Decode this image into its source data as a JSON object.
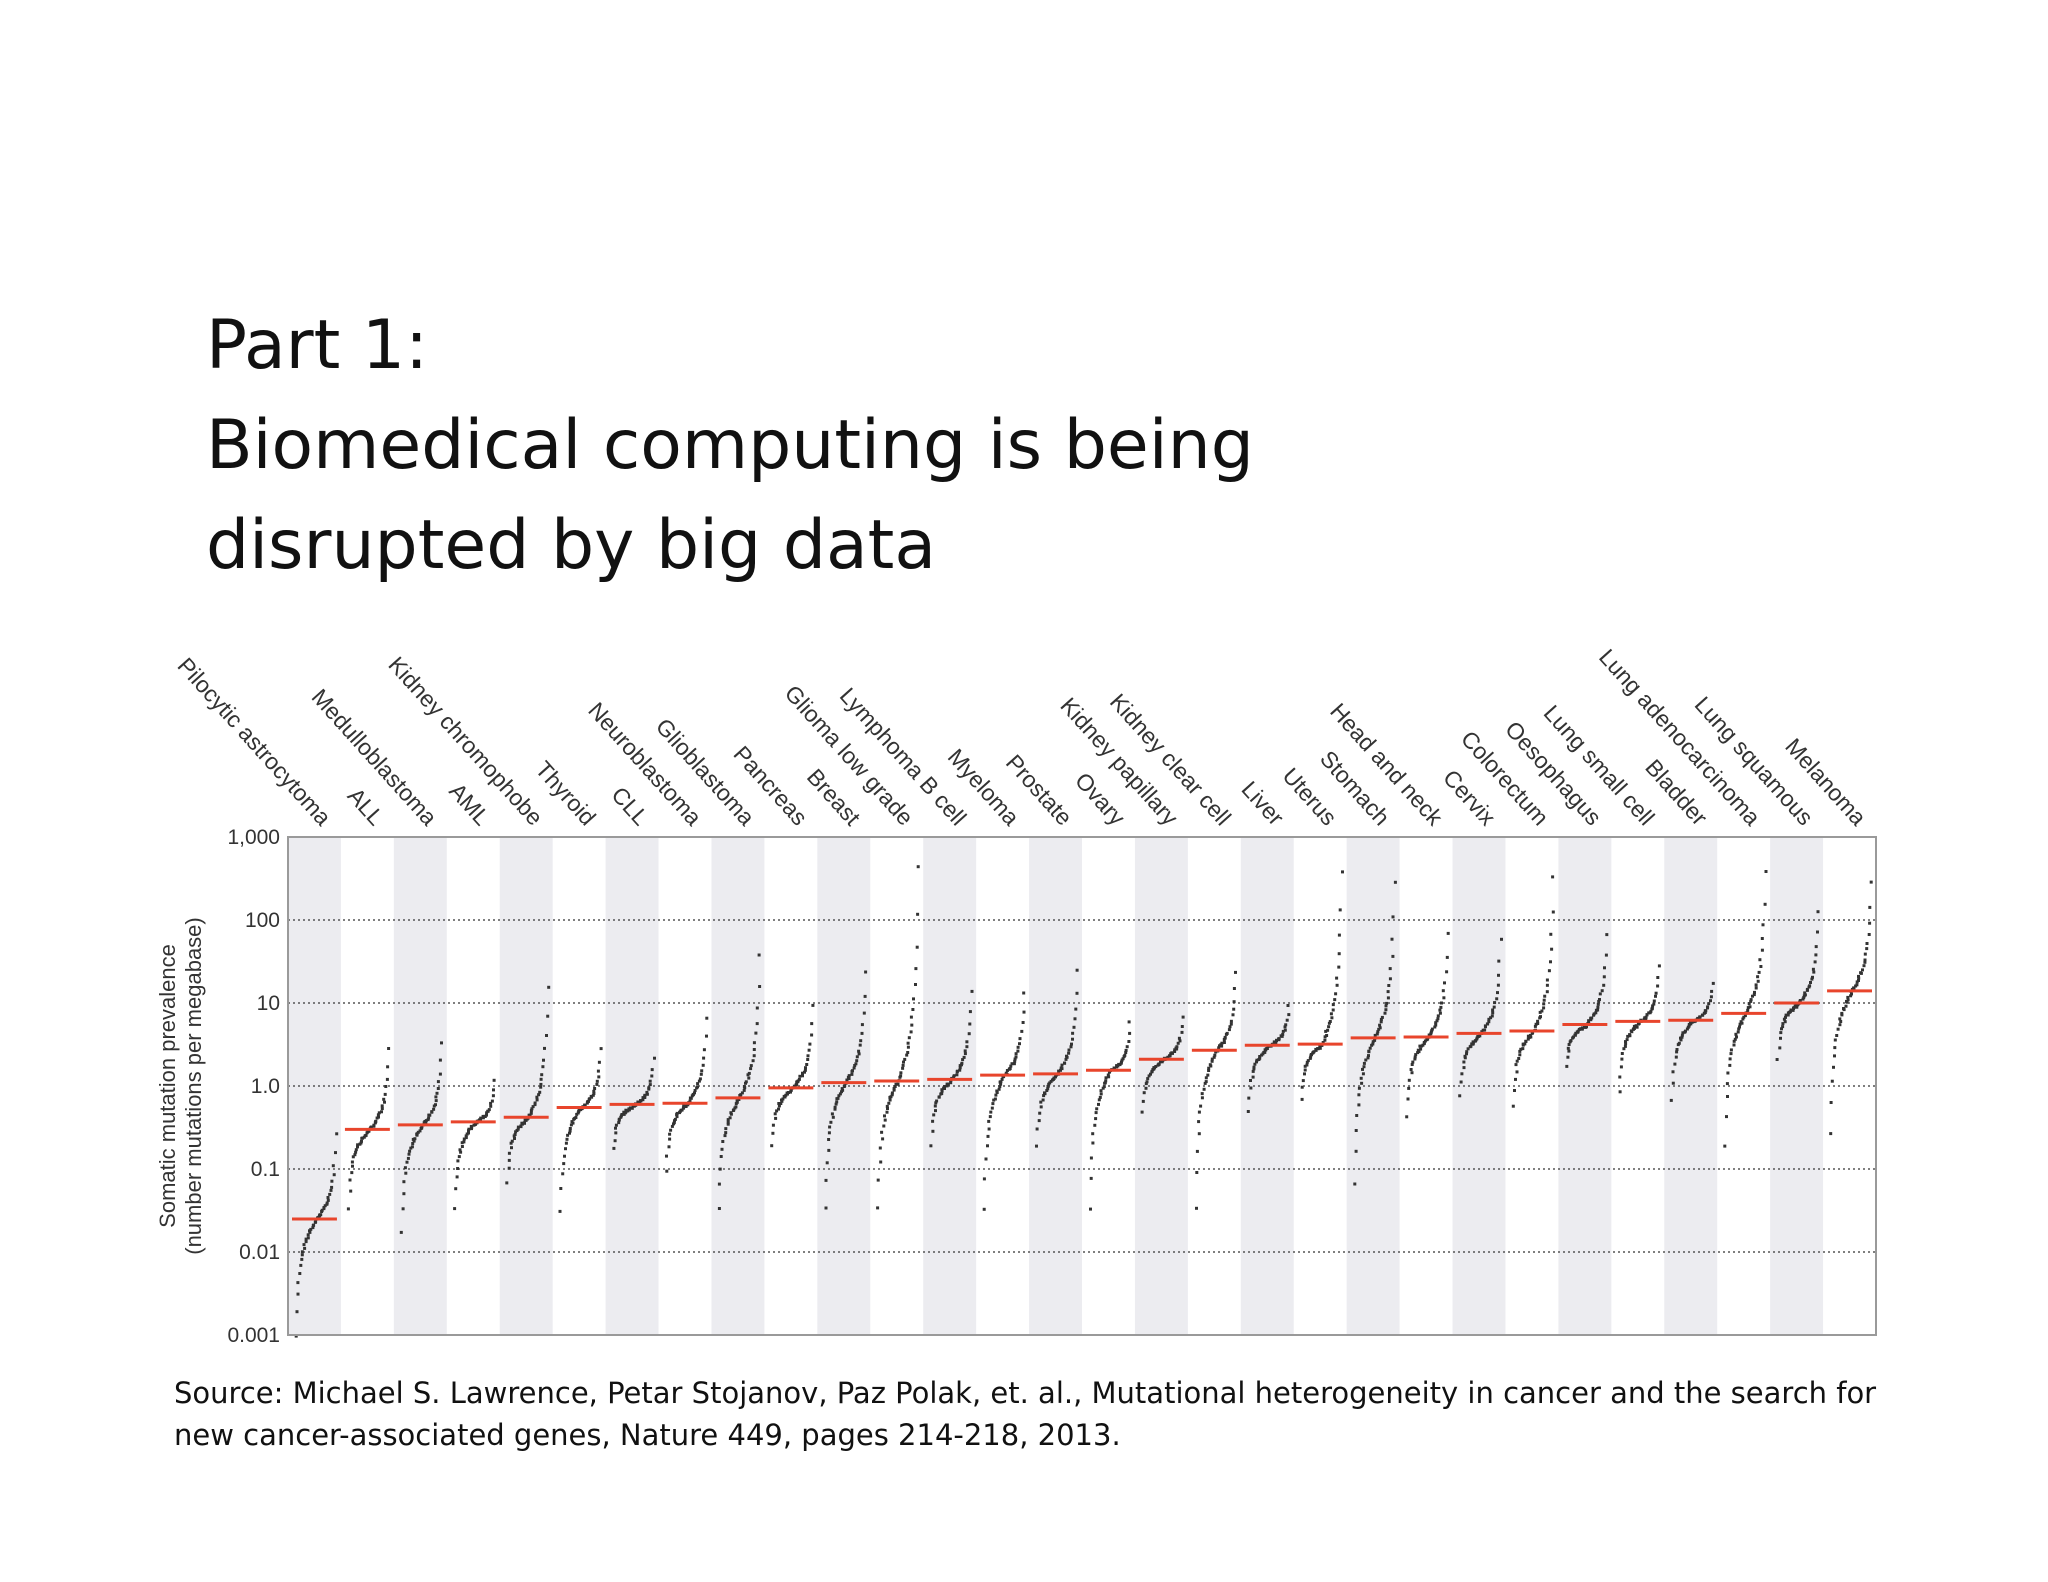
{
  "slide": {
    "title_line1": "Part 1:",
    "title_line2": "Biomedical computing is being",
    "title_line3": "disrupted by big data",
    "source_line1": "Source: Michael S. Lawrence, Petar Stojanov, Paz Polak, et. al., Mutational heterogeneity in cancer and the search for",
    "source_line2": "new cancer-associated genes, Nature 449, pages 214-218, 2013."
  },
  "chart_data": {
    "type": "scatter",
    "title": "",
    "xlabel": "",
    "ylabel_line1": "Somatic mutation prevalence",
    "ylabel_line2": "(number mutations per megabase)",
    "yscale": "log",
    "ylim": [
      0.001,
      1000
    ],
    "yticks": [
      "0.001",
      "0.01",
      "0.1",
      "1.0",
      "10",
      "100",
      "1,000"
    ],
    "grid": "dotted horizontal at decades",
    "median_color": "#e8452c",
    "point_color": "#333333",
    "band_color": "#ececf0",
    "categories": [
      {
        "name": "Pilocytic astrocytoma",
        "median": 0.025,
        "lo": 0.001,
        "hi": 0.28
      },
      {
        "name": "ALL",
        "median": 0.3,
        "lo": 0.035,
        "hi": 3.0
      },
      {
        "name": "Medulloblastoma",
        "median": 0.34,
        "lo": 0.018,
        "hi": 3.5
      },
      {
        "name": "AML",
        "median": 0.37,
        "lo": 0.035,
        "hi": 1.2
      },
      {
        "name": "Kidney chromophobe",
        "median": 0.42,
        "lo": 0.07,
        "hi": 16
      },
      {
        "name": "Thyroid",
        "median": 0.55,
        "lo": 0.032,
        "hi": 3.0
      },
      {
        "name": "CLL",
        "median": 0.6,
        "lo": 0.18,
        "hi": 2.2
      },
      {
        "name": "Neuroblastoma",
        "median": 0.62,
        "lo": 0.1,
        "hi": 7
      },
      {
        "name": "Glioblastoma",
        "median": 0.72,
        "lo": 0.035,
        "hi": 40
      },
      {
        "name": "Pancreas",
        "median": 0.95,
        "lo": 0.2,
        "hi": 10
      },
      {
        "name": "Breast",
        "median": 1.1,
        "lo": 0.035,
        "hi": 25
      },
      {
        "name": "Glioma low grade",
        "median": 1.15,
        "lo": 0.035,
        "hi": 450
      },
      {
        "name": "Lymphoma B cell",
        "median": 1.2,
        "lo": 0.2,
        "hi": 14
      },
      {
        "name": "Myeloma",
        "median": 1.35,
        "lo": 0.035,
        "hi": 14
      },
      {
        "name": "Prostate",
        "median": 1.4,
        "lo": 0.2,
        "hi": 26
      },
      {
        "name": "Ovary",
        "median": 1.55,
        "lo": 0.035,
        "hi": 6
      },
      {
        "name": "Kidney papillary",
        "median": 2.1,
        "lo": 0.5,
        "hi": 7
      },
      {
        "name": "Kidney clear cell",
        "median": 2.7,
        "lo": 0.035,
        "hi": 25
      },
      {
        "name": "Liver",
        "median": 3.1,
        "lo": 0.5,
        "hi": 10
      },
      {
        "name": "Uterus",
        "median": 3.2,
        "lo": 0.7,
        "hi": 400
      },
      {
        "name": "Stomach",
        "median": 3.8,
        "lo": 0.07,
        "hi": 300
      },
      {
        "name": "Head and neck",
        "median": 3.9,
        "lo": 0.45,
        "hi": 70
      },
      {
        "name": "Cervix",
        "median": 4.3,
        "lo": 0.8,
        "hi": 60
      },
      {
        "name": "Colorectum",
        "median": 4.6,
        "lo": 0.6,
        "hi": 350
      },
      {
        "name": "Oesophagus",
        "median": 5.5,
        "lo": 1.8,
        "hi": 70
      },
      {
        "name": "Lung small cell",
        "median": 6.0,
        "lo": 0.9,
        "hi": 30
      },
      {
        "name": "Bladder",
        "median": 6.2,
        "lo": 0.7,
        "hi": 18
      },
      {
        "name": "Lung adenocarcinoma",
        "median": 7.5,
        "lo": 0.2,
        "hi": 400
      },
      {
        "name": "Lung squamous",
        "median": 10,
        "lo": 2.2,
        "hi": 130
      },
      {
        "name": "Melanoma",
        "median": 14,
        "lo": 0.28,
        "hi": 300
      }
    ]
  }
}
